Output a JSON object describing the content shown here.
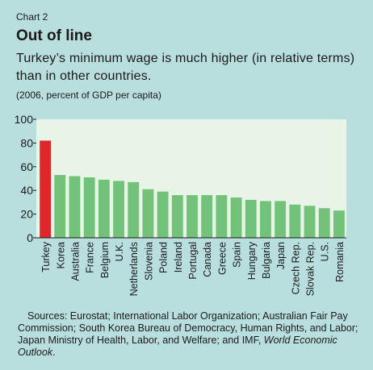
{
  "header": {
    "chart_label": "Chart 2",
    "title": "Out of line",
    "subtitle": "Turkey’s minimum wage is much higher (in relative terms) than in other countries.",
    "units": "(2006, percent of GDP per capita)"
  },
  "chart_data": {
    "type": "bar",
    "categories": [
      "Turkey",
      "Korea",
      "Australia",
      "France",
      "Belgium",
      "U.K.",
      "Netherlands",
      "Slovenia",
      "Poland",
      "Ireland",
      "Portugal",
      "Canada",
      "Greece",
      "Spain",
      "Hungary",
      "Bulgaria",
      "Japan",
      "Czech Rep.",
      "Slovak Rep.",
      "U.S.",
      "Romania"
    ],
    "values": [
      82,
      53,
      52,
      51,
      49,
      48,
      47,
      41,
      39,
      36,
      36,
      36,
      36,
      34,
      32,
      31,
      31,
      28,
      27,
      25,
      23
    ],
    "ylim": [
      0,
      100
    ],
    "yticks": [
      0,
      20,
      40,
      60,
      80,
      100
    ],
    "grid": false,
    "colors": {
      "highlight": "#e0262b",
      "default": "#72c27a",
      "plot_bg": "#e8f4e6"
    },
    "highlight_index": 0
  },
  "sources": {
    "line1": "Sources: Eurostat; International Labor Organization; Australian Fair Pay Commission; South Korea Bureau of Democracy, Human Rights, and Labor; Japan Ministry of Health, Labor, and Welfare; and IMF,",
    "italic": "World Economic Outlook",
    "end": "."
  }
}
